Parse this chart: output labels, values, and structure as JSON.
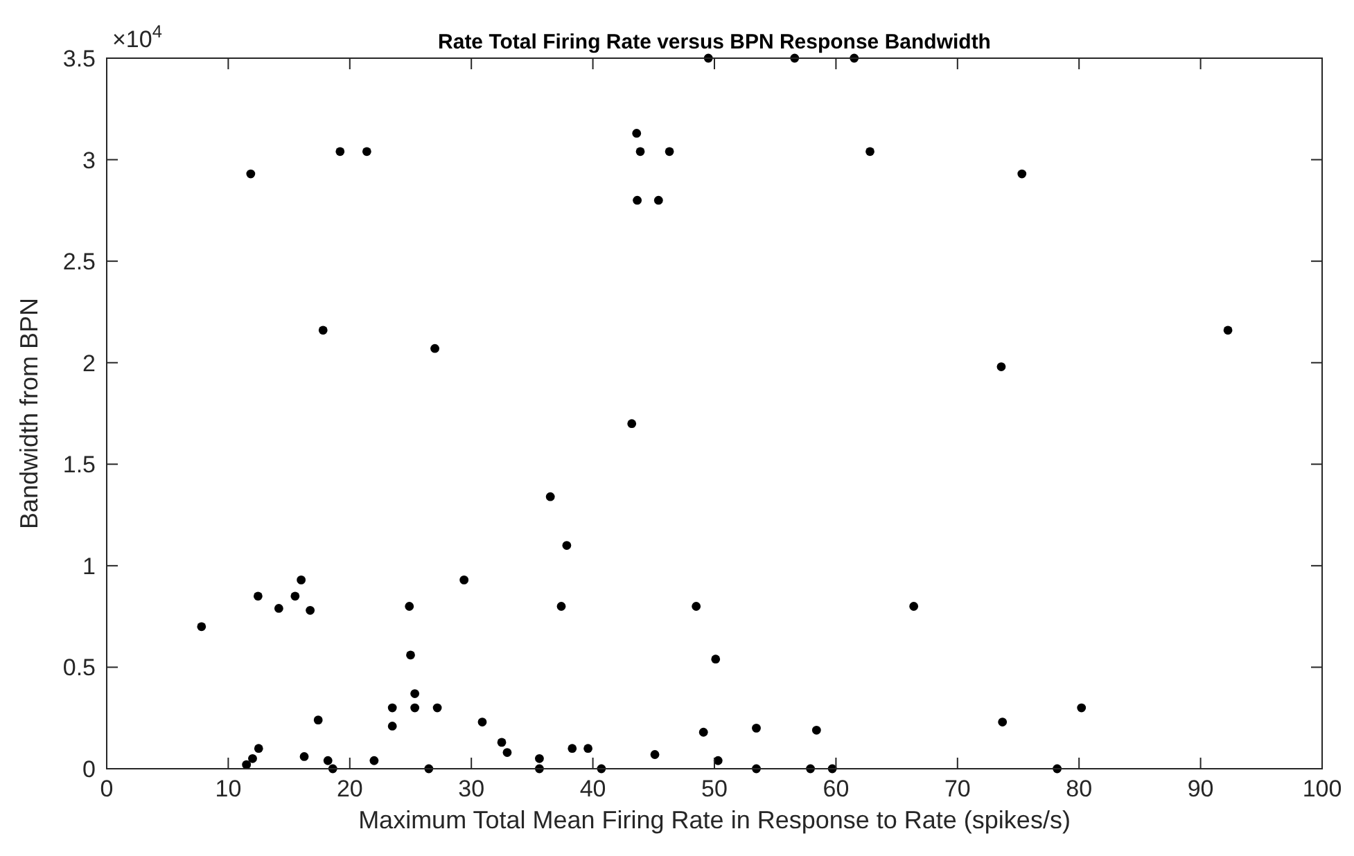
{
  "chart_data": {
    "type": "scatter",
    "title": "Rate Total Firing Rate versus BPN Response Bandwidth",
    "xlabel": "Maximum Total Mean Firing Rate in Response to Rate (spikes/s)",
    "ylabel": "Bandwidth from BPN",
    "annotations": [
      "×10$^{4}$"
    ],
    "xlim": [
      0,
      100
    ],
    "xticks": [
      0,
      10,
      20,
      30,
      40,
      50,
      60,
      70,
      80,
      90,
      100
    ],
    "ylim": [
      0,
      3.5
    ],
    "yticks": [
      0,
      0.5,
      1,
      1.5,
      2,
      2.5,
      3,
      3.5
    ],
    "grid": false,
    "marker": "circle",
    "series": [
      {
        "color": "#000000",
        "x": [
          11.85,
          19.2,
          21.4,
          17.8,
          27.0,
          49.5,
          56.6,
          61.5,
          43.6,
          43.9,
          46.3,
          43.65,
          45.4,
          62.8,
          75.3,
          73.6,
          92.25,
          7.8,
          12.45,
          14.16,
          15.5,
          16.0,
          16.74,
          17.4,
          12.5,
          12.0,
          11.5,
          16.25,
          18.2,
          18.6,
          22.0,
          23.5,
          23.5,
          24.9,
          25.0,
          25.35,
          25.35,
          27.2,
          26.5,
          29.4,
          30.9,
          43.2,
          36.5,
          37.85,
          37.4,
          48.5,
          50.1,
          32.5,
          32.95,
          35.6,
          35.6,
          38.3,
          39.6,
          40.7,
          45.1,
          49.1,
          50.3,
          53.45,
          53.45,
          57.9,
          58.4,
          59.7,
          66.4,
          73.7,
          80.2,
          78.2
        ],
        "values": [
          2.93,
          3.04,
          3.04,
          2.16,
          2.07,
          3.5,
          3.5,
          3.5,
          3.13,
          3.04,
          3.04,
          2.8,
          2.8,
          3.04,
          2.93,
          1.98,
          2.16,
          0.7,
          0.85,
          0.79,
          0.85,
          0.93,
          0.78,
          0.24,
          0.1,
          0.05,
          0.02,
          0.06,
          0.04,
          0,
          0.04,
          0.3,
          0.21,
          0.8,
          0.56,
          0.37,
          0.3,
          0.3,
          0,
          0.93,
          0.23,
          1.7,
          1.34,
          1.1,
          0.8,
          0.8,
          0.54,
          0.13,
          0.08,
          0.05,
          0,
          0.1,
          0.1,
          0,
          0.07,
          0.18,
          0.04,
          0.2,
          0,
          0,
          0.19,
          0,
          0.8,
          0.23,
          0.3,
          0
        ]
      }
    ]
  }
}
